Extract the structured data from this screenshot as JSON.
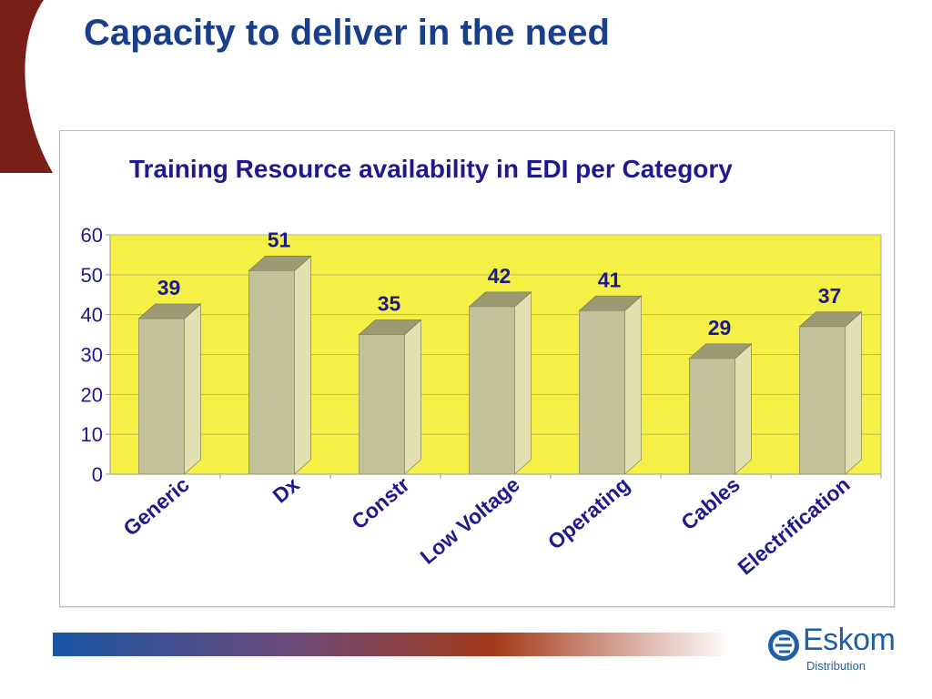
{
  "slide": {
    "title": "Capacity to deliver in the need",
    "colors": {
      "title": "#1a3f8a",
      "accent_red": "#7a1f18"
    }
  },
  "logo": {
    "name": "Eskom",
    "sub": "Distribution"
  },
  "chart_data": {
    "type": "bar",
    "title": "Training Resource availability in EDI per Category",
    "xlabel": "",
    "ylabel": "",
    "categories": [
      "Generic",
      "Dx",
      "Constr",
      "Low Voltage",
      "Operating",
      "Cables",
      "Electrification"
    ],
    "values": [
      39,
      51,
      35,
      42,
      41,
      29,
      37
    ],
    "ylim": [
      0,
      60
    ],
    "yticks": [
      "0",
      "10",
      "20",
      "30",
      "40",
      "50",
      "60"
    ],
    "grid": true,
    "legend": "none",
    "style": "3d-column",
    "colors": {
      "plot_background": "#f5f046",
      "bar_front": "#c2c19a",
      "bar_side": "#e2e0b0",
      "bar_top": "#9b9a72",
      "labels": "#1e1a8c"
    }
  }
}
